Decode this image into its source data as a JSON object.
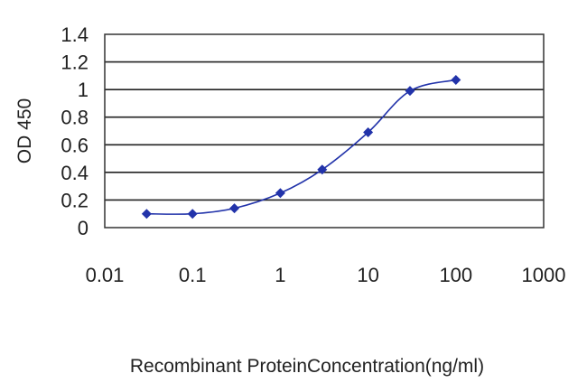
{
  "chart_data": {
    "type": "line",
    "title": "",
    "xlabel": "Recombinant ProteinConcentration(ng/ml)",
    "ylabel": "OD 450",
    "x_scale": "log",
    "xlim": [
      0.01,
      1000
    ],
    "ylim": [
      0,
      1.4
    ],
    "x_ticks": [
      "0.01",
      "0.1",
      "1",
      "10",
      "100",
      "1000"
    ],
    "y_ticks": [
      "0",
      "0.2",
      "0.4",
      "0.6",
      "0.8",
      "1",
      "1.2",
      "1.4"
    ],
    "grid": "horizontal",
    "series": [
      {
        "x": [
          0.03,
          0.1,
          0.3,
          1,
          3,
          10,
          30,
          100
        ],
        "y": [
          0.1,
          0.1,
          0.14,
          0.25,
          0.42,
          0.69,
          0.99,
          1.07
        ],
        "color": "#2233aa",
        "marker": "diamond"
      }
    ]
  }
}
